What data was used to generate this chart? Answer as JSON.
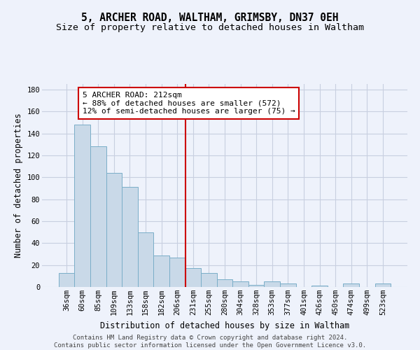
{
  "title": "5, ARCHER ROAD, WALTHAM, GRIMSBY, DN37 0EH",
  "subtitle": "Size of property relative to detached houses in Waltham",
  "xlabel": "Distribution of detached houses by size in Waltham",
  "ylabel": "Number of detached properties",
  "categories": [
    "36sqm",
    "60sqm",
    "85sqm",
    "109sqm",
    "133sqm",
    "158sqm",
    "182sqm",
    "206sqm",
    "231sqm",
    "255sqm",
    "280sqm",
    "304sqm",
    "328sqm",
    "353sqm",
    "377sqm",
    "401sqm",
    "426sqm",
    "450sqm",
    "474sqm",
    "499sqm",
    "523sqm"
  ],
  "values": [
    13,
    148,
    128,
    104,
    91,
    50,
    29,
    27,
    17,
    13,
    7,
    5,
    2,
    5,
    3,
    0,
    1,
    0,
    3,
    0,
    3
  ],
  "bar_color": "#c9d9e8",
  "bar_edge_color": "#7aaec8",
  "vline_x_index": 7,
  "vline_color": "#cc0000",
  "annotation_text": "5 ARCHER ROAD: 212sqm\n← 88% of detached houses are smaller (572)\n12% of semi-detached houses are larger (75) →",
  "annotation_box_color": "#ffffff",
  "annotation_box_edge_color": "#cc0000",
  "ylim": [
    0,
    185
  ],
  "yticks": [
    0,
    20,
    40,
    60,
    80,
    100,
    120,
    140,
    160,
    180
  ],
  "background_color": "#eef2fb",
  "grid_color": "#c8cfe0",
  "footer_text": "Contains HM Land Registry data © Crown copyright and database right 2024.\nContains public sector information licensed under the Open Government Licence v3.0.",
  "title_fontsize": 10.5,
  "subtitle_fontsize": 9.5,
  "axis_label_fontsize": 8.5,
  "tick_fontsize": 7.5,
  "annotation_fontsize": 8,
  "footer_fontsize": 6.5
}
